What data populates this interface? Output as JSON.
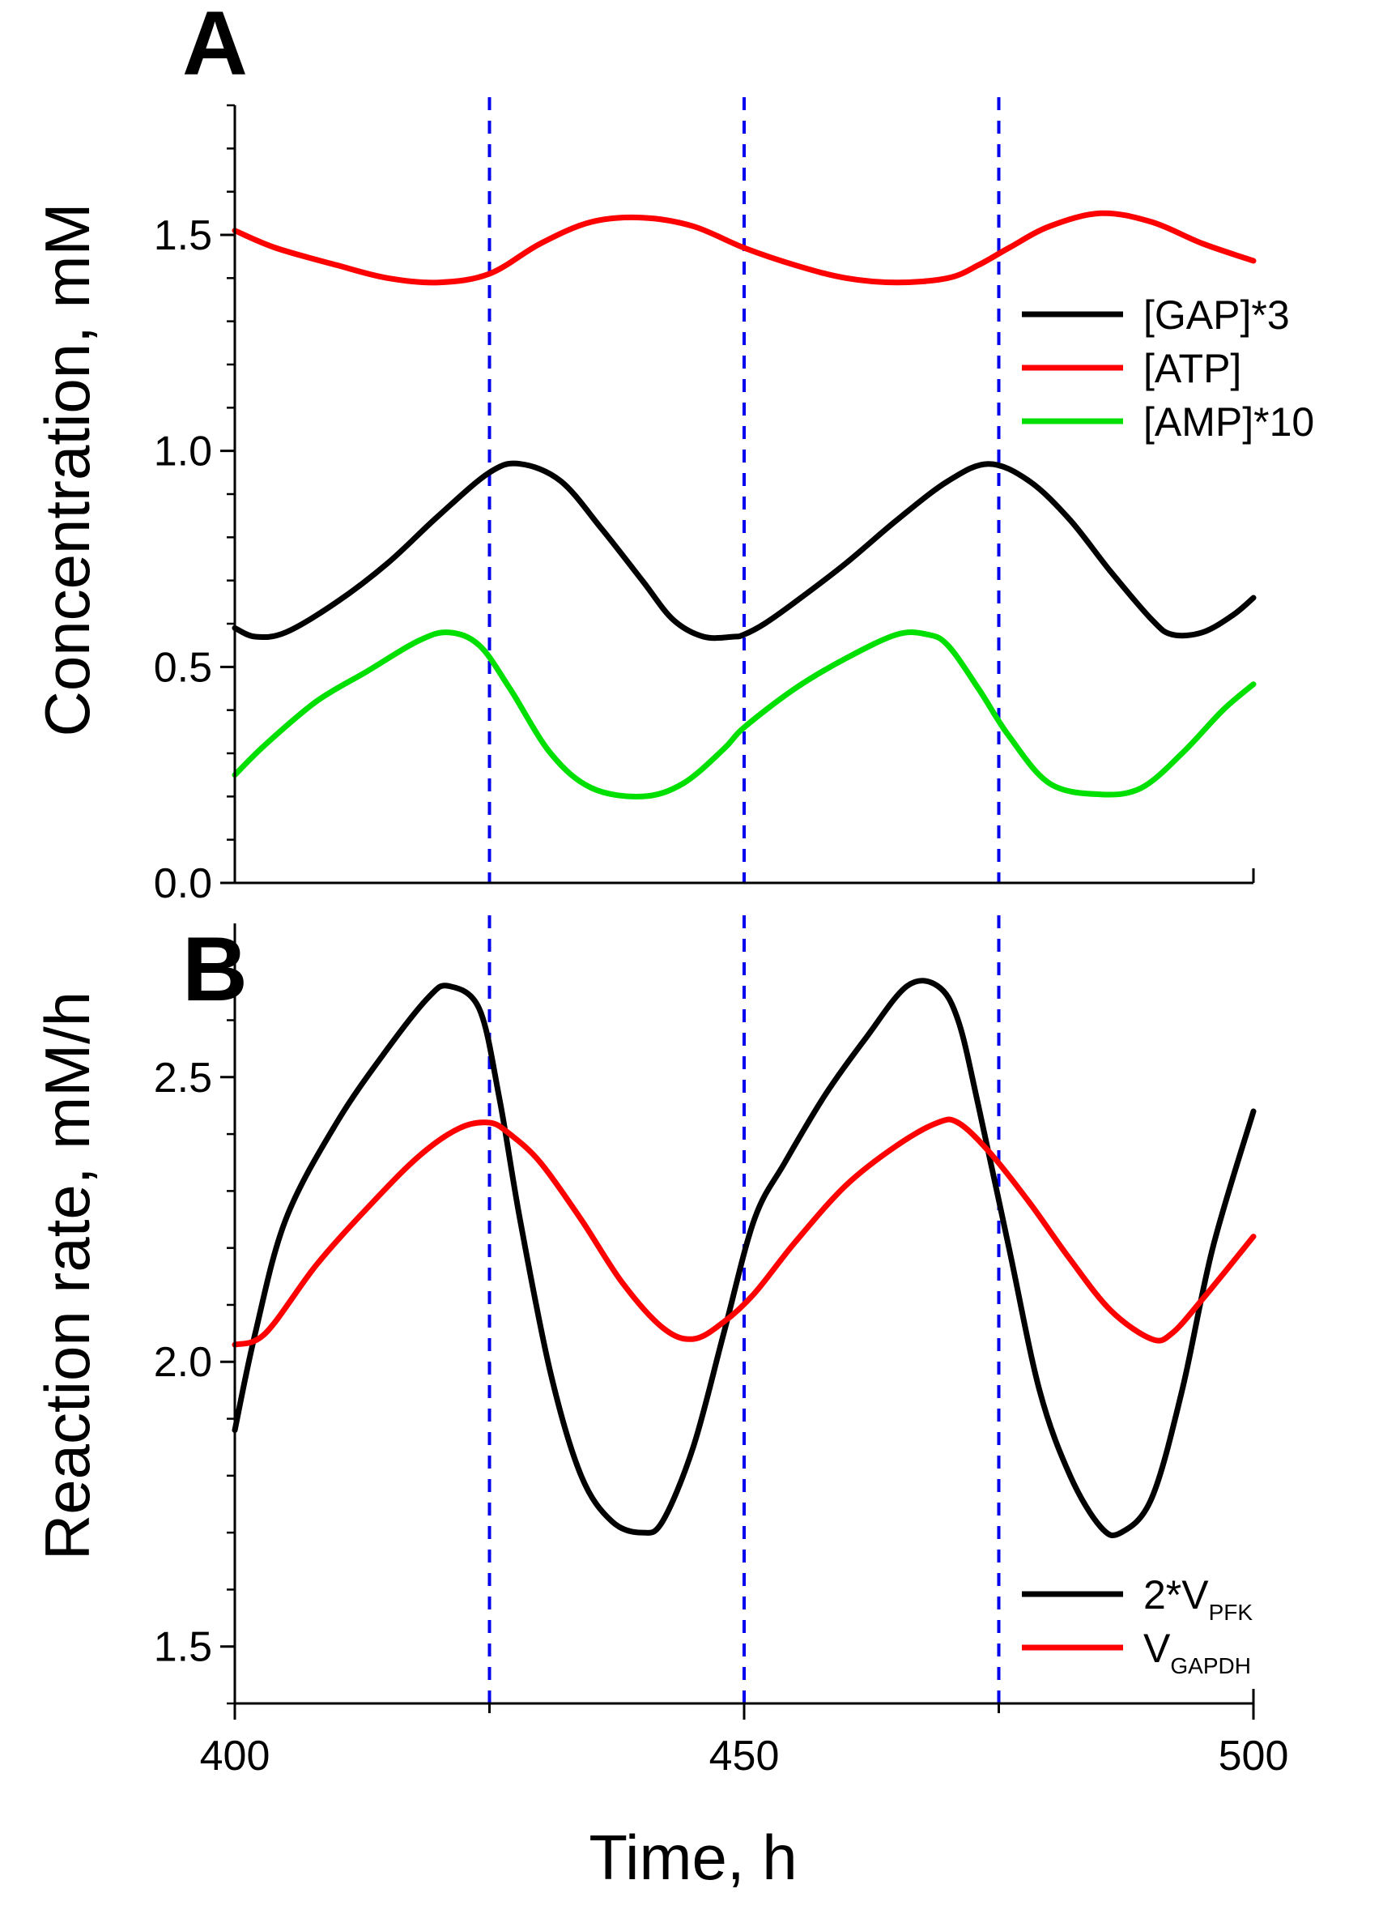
{
  "chart_data": [
    {
      "panel": "A",
      "type": "line",
      "panel_label": "A",
      "xlabel": "Time,   h",
      "ylabel": "Concentration,   mM",
      "xlim": [
        400,
        500
      ],
      "ylim": [
        0,
        1.8
      ],
      "yticks": [
        0.0,
        0.5,
        1.0,
        1.5
      ],
      "ytick_labels": [
        "0.0",
        "0.5",
        "1.0",
        "1.5"
      ],
      "vlines": [
        425,
        450,
        475
      ],
      "vline_color": "#0000ee",
      "legend_position": "right",
      "series": [
        {
          "name": "[GAP]*3",
          "color": "#000000",
          "x": [
            400,
            402,
            405,
            410,
            415,
            420,
            425,
            428,
            432,
            436,
            440,
            443,
            446,
            449,
            450,
            452,
            455,
            460,
            465,
            470,
            474,
            478,
            482,
            486,
            490,
            492,
            495,
            498,
            500
          ],
          "y": [
            0.59,
            0.57,
            0.58,
            0.65,
            0.74,
            0.85,
            0.95,
            0.97,
            0.93,
            0.82,
            0.7,
            0.61,
            0.57,
            0.57,
            0.575,
            0.6,
            0.65,
            0.74,
            0.84,
            0.93,
            0.97,
            0.93,
            0.84,
            0.72,
            0.61,
            0.575,
            0.58,
            0.62,
            0.66
          ]
        },
        {
          "name": "[ATP]",
          "color": "#ff0000",
          "x": [
            400,
            404,
            410,
            415,
            420,
            425,
            430,
            435,
            440,
            445,
            450,
            455,
            460,
            465,
            470,
            473,
            476,
            480,
            485,
            490,
            495,
            500
          ],
          "y": [
            1.51,
            1.47,
            1.43,
            1.4,
            1.39,
            1.41,
            1.48,
            1.53,
            1.54,
            1.52,
            1.47,
            1.43,
            1.4,
            1.39,
            1.4,
            1.43,
            1.47,
            1.52,
            1.55,
            1.53,
            1.48,
            1.44
          ]
        },
        {
          "name": "[AMP]*10",
          "color": "#00e000",
          "x": [
            400,
            403,
            408,
            413,
            418,
            421,
            424,
            427,
            431,
            435,
            440,
            444,
            448,
            450,
            455,
            460,
            465,
            468,
            470,
            473,
            476,
            480,
            485,
            489,
            493,
            497,
            500
          ],
          "y": [
            0.25,
            0.32,
            0.42,
            0.49,
            0.56,
            0.58,
            0.55,
            0.45,
            0.3,
            0.22,
            0.2,
            0.23,
            0.31,
            0.36,
            0.45,
            0.52,
            0.575,
            0.575,
            0.55,
            0.45,
            0.34,
            0.23,
            0.205,
            0.22,
            0.3,
            0.4,
            0.46
          ]
        }
      ]
    },
    {
      "panel": "B",
      "type": "line",
      "panel_label": "B",
      "xlabel": "Time,   h",
      "ylabel": "Reaction rate,   mM/h",
      "xlim": [
        400,
        500
      ],
      "ylim": [
        1.4,
        2.77
      ],
      "xticks": [
        400,
        450,
        500
      ],
      "xtick_labels": [
        "400",
        "450",
        "500"
      ],
      "yticks": [
        1.5,
        2.0,
        2.5
      ],
      "ytick_labels": [
        "1.5",
        "2.0",
        "2.5"
      ],
      "vlines": [
        425,
        450,
        475
      ],
      "vline_color": "#0000ee",
      "legend_position": "bottom-right",
      "series": [
        {
          "name": "2*V",
          "subscript": "PFK",
          "color": "#000000",
          "x": [
            400,
            402,
            405,
            410,
            415,
            419,
            421,
            424,
            426,
            428,
            431,
            434,
            437,
            440,
            442,
            445,
            448,
            451,
            454,
            458,
            462,
            466,
            469,
            471,
            473,
            476,
            479,
            482,
            485,
            487,
            490,
            493,
            496,
            500
          ],
          "y": [
            1.88,
            2.05,
            2.25,
            2.42,
            2.55,
            2.64,
            2.66,
            2.62,
            2.46,
            2.25,
            1.98,
            1.8,
            1.72,
            1.7,
            1.72,
            1.85,
            2.05,
            2.25,
            2.35,
            2.47,
            2.57,
            2.66,
            2.66,
            2.6,
            2.45,
            2.2,
            1.95,
            1.8,
            1.71,
            1.7,
            1.76,
            1.95,
            2.2,
            2.44
          ]
        },
        {
          "name": "V",
          "subscript": "GAPDH",
          "color": "#ff0000",
          "x": [
            400,
            403,
            408,
            413,
            418,
            422,
            425,
            427,
            430,
            434,
            438,
            442,
            445,
            448,
            451,
            455,
            460,
            465,
            469,
            471,
            474,
            478,
            482,
            486,
            490,
            492,
            495,
            500
          ],
          "y": [
            2.03,
            2.05,
            2.17,
            2.27,
            2.36,
            2.41,
            2.42,
            2.4,
            2.35,
            2.25,
            2.14,
            2.06,
            2.04,
            2.07,
            2.12,
            2.21,
            2.31,
            2.38,
            2.42,
            2.42,
            2.37,
            2.28,
            2.18,
            2.09,
            2.04,
            2.05,
            2.11,
            2.22
          ]
        }
      ]
    }
  ]
}
